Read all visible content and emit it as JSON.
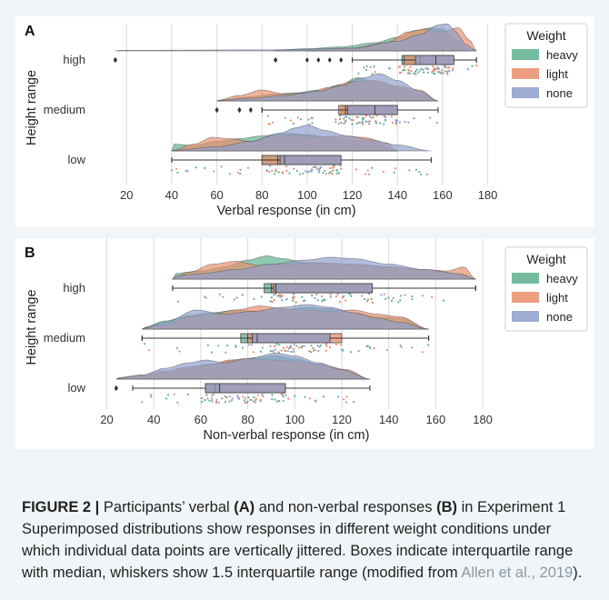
{
  "colors": {
    "heavy": "#5db08e",
    "light": "#e98d6b",
    "none": "#8e9dcb",
    "panel_bg": "#ffffff",
    "figure_bg": "#f1f5f8"
  },
  "chart_data": [
    {
      "type": "raincloud",
      "panel_label": "A",
      "xlabel": "Verbal response (in cm)",
      "ylabel": "Height range",
      "xlim": [
        5,
        183
      ],
      "xticks": [
        20,
        40,
        60,
        80,
        100,
        120,
        140,
        160,
        180
      ],
      "grid": true,
      "legend_position": "outside-right",
      "legend_title": "Weight",
      "legend": [
        "heavy",
        "light",
        "none"
      ],
      "categories": [
        "high",
        "medium",
        "low"
      ],
      "groups": [
        {
          "category": "high",
          "series": [
            {
              "name": "heavy",
              "q1": 142,
              "median": 150,
              "q3": 163,
              "whisker_low": 120,
              "whisker_high": 175,
              "outliers": [
                15,
                86,
                100,
                105,
                110,
                115
              ],
              "density_x": [
                85,
                100,
                115,
                130,
                140,
                148,
                155,
                160,
                165,
                172
              ],
              "density_y": [
                0.03,
                0.08,
                0.15,
                0.3,
                0.5,
                0.75,
                0.85,
                0.8,
                0.45,
                0.05
              ]
            },
            {
              "name": "light",
              "q1": 143,
              "median": 150,
              "q3": 165,
              "whisker_low": 120,
              "whisker_high": 175,
              "outliers": [
                15,
                86
              ],
              "density_x": [
                100,
                120,
                135,
                145,
                152,
                160,
                167,
                172,
                175
              ],
              "density_y": [
                0.03,
                0.1,
                0.3,
                0.7,
                0.8,
                0.7,
                0.85,
                0.4,
                0.0
              ]
            },
            {
              "name": "none",
              "q1": 148,
              "median": 157,
              "q3": 165,
              "whisker_low": 120,
              "whisker_high": 175,
              "outliers": [
                15,
                86
              ],
              "density_x": [
                15,
                86,
                120,
                140,
                150,
                158,
                162,
                166,
                170,
                175
              ],
              "density_y": [
                0.02,
                0.04,
                0.1,
                0.35,
                0.6,
                0.95,
                1.0,
                0.7,
                0.25,
                0.0
              ]
            }
          ]
        },
        {
          "category": "medium",
          "series": [
            {
              "name": "heavy",
              "q1": 115,
              "median": 118,
              "q3": 138,
              "whisker_low": 80,
              "whisker_high": 158,
              "outliers": [
                60,
                70,
                75
              ],
              "density_x": [
                60,
                75,
                85,
                95,
                105,
                115,
                122,
                130,
                140,
                150,
                158
              ],
              "density_y": [
                0.02,
                0.15,
                0.25,
                0.3,
                0.4,
                0.6,
                0.85,
                0.7,
                0.5,
                0.25,
                0.0
              ]
            },
            {
              "name": "light",
              "q1": 114,
              "median": 117,
              "q3": 140,
              "whisker_low": 80,
              "whisker_high": 158,
              "outliers": [
                60,
                70
              ],
              "density_x": [
                60,
                70,
                80,
                90,
                100,
                110,
                120,
                130,
                140,
                150,
                158
              ],
              "density_y": [
                0.02,
                0.2,
                0.4,
                0.25,
                0.3,
                0.5,
                0.7,
                0.75,
                0.55,
                0.4,
                0.0
              ]
            },
            {
              "name": "none",
              "q1": 118,
              "median": 130,
              "q3": 140,
              "whisker_low": 80,
              "whisker_high": 158,
              "outliers": [
                60,
                70,
                75
              ],
              "density_x": [
                60,
                75,
                90,
                105,
                115,
                125,
                132,
                140,
                150,
                158
              ],
              "density_y": [
                0.02,
                0.1,
                0.2,
                0.35,
                0.55,
                0.85,
                1.0,
                0.75,
                0.35,
                0.0
              ]
            }
          ]
        },
        {
          "category": "low",
          "series": [
            {
              "name": "heavy",
              "q1": 80,
              "median": 90,
              "q3": 115,
              "whisker_low": 40,
              "whisker_high": 155,
              "outliers": [],
              "density_x": [
                40,
                50,
                60,
                70,
                80,
                90,
                100,
                110,
                120,
                130,
                140
              ],
              "density_y": [
                0.25,
                0.2,
                0.35,
                0.45,
                0.55,
                0.65,
                0.6,
                0.5,
                0.4,
                0.3,
                0.0
              ]
            },
            {
              "name": "light",
              "q1": 80,
              "median": 87,
              "q3": 115,
              "whisker_low": 40,
              "whisker_high": 155,
              "outliers": [],
              "density_x": [
                40,
                50,
                58,
                65,
                75,
                85,
                95,
                105,
                115,
                125,
                135,
                140
              ],
              "density_y": [
                0.02,
                0.25,
                0.5,
                0.45,
                0.35,
                0.55,
                0.6,
                0.5,
                0.55,
                0.5,
                0.3,
                0.0
              ]
            },
            {
              "name": "none",
              "q1": 88,
              "median": 90,
              "q3": 115,
              "whisker_low": 40,
              "whisker_high": 155,
              "outliers": [],
              "density_x": [
                40,
                60,
                75,
                88,
                95,
                100,
                108,
                118,
                128,
                140,
                155
              ],
              "density_y": [
                0.02,
                0.15,
                0.35,
                0.65,
                0.85,
                0.95,
                0.75,
                0.55,
                0.4,
                0.22,
                0.0
              ]
            }
          ]
        }
      ]
    },
    {
      "type": "raincloud",
      "panel_label": "B",
      "xlabel": "Non-verbal response (in cm)",
      "ylabel": "Height range",
      "xlim": [
        14,
        185
      ],
      "xticks": [
        20,
        40,
        60,
        80,
        100,
        120,
        140,
        160,
        180
      ],
      "grid": true,
      "legend_position": "outside-right",
      "legend_title": "Weight",
      "legend": [
        "heavy",
        "light",
        "none"
      ],
      "categories": [
        "high",
        "medium",
        "low"
      ],
      "groups": [
        {
          "category": "high",
          "series": [
            {
              "name": "heavy",
              "q1": 87,
              "median": 90,
              "q3": 133,
              "whisker_low": 48,
              "whisker_high": 177,
              "outliers": [],
              "density_x": [
                48,
                60,
                70,
                80,
                88,
                95,
                105,
                118,
                130,
                145,
                160,
                172,
                177
              ],
              "density_y": [
                0.2,
                0.3,
                0.45,
                0.7,
                0.85,
                0.75,
                0.6,
                0.55,
                0.5,
                0.4,
                0.3,
                0.15,
                0.0
              ]
            },
            {
              "name": "light",
              "q1": 90,
              "median": 92,
              "q3": 133,
              "whisker_low": 48,
              "whisker_high": 177,
              "outliers": [],
              "density_x": [
                48,
                55,
                65,
                75,
                85,
                95,
                110,
                125,
                140,
                155,
                165,
                172,
                177
              ],
              "density_y": [
                0.05,
                0.25,
                0.55,
                0.65,
                0.5,
                0.55,
                0.6,
                0.55,
                0.45,
                0.35,
                0.3,
                0.45,
                0.0
              ]
            },
            {
              "name": "none",
              "q1": 91,
              "median": 92,
              "q3": 133,
              "whisker_low": 48,
              "whisker_high": 177,
              "outliers": [],
              "density_x": [
                48,
                60,
                75,
                90,
                105,
                115,
                125,
                140,
                155,
                170,
                177
              ],
              "density_y": [
                0.1,
                0.2,
                0.35,
                0.55,
                0.7,
                0.8,
                0.75,
                0.55,
                0.35,
                0.2,
                0.0
              ]
            }
          ]
        },
        {
          "category": "medium",
          "series": [
            {
              "name": "heavy",
              "q1": 77,
              "median": 80,
              "q3": 115,
              "whisker_low": 35,
              "whisker_high": 157,
              "outliers": [],
              "density_x": [
                35,
                45,
                55,
                65,
                75,
                85,
                95,
                105,
                115,
                125,
                135,
                145,
                157
              ],
              "density_y": [
                0.05,
                0.3,
                0.5,
                0.6,
                0.7,
                0.65,
                0.7,
                0.8,
                0.75,
                0.6,
                0.45,
                0.4,
                0.0
              ]
            },
            {
              "name": "light",
              "q1": 80,
              "median": 82,
              "q3": 120,
              "whisker_low": 35,
              "whisker_high": 157,
              "outliers": [],
              "density_x": [
                35,
                45,
                55,
                65,
                75,
                85,
                95,
                105,
                115,
                125,
                135,
                145,
                157
              ],
              "density_y": [
                0.05,
                0.15,
                0.45,
                0.55,
                0.7,
                0.85,
                0.75,
                0.7,
                0.65,
                0.7,
                0.55,
                0.45,
                0.0
              ]
            },
            {
              "name": "none",
              "q1": 82,
              "median": 84,
              "q3": 115,
              "whisker_low": 35,
              "whisker_high": 157,
              "outliers": [],
              "density_x": [
                35,
                45,
                58,
                70,
                82,
                95,
                105,
                115,
                125,
                135,
                145,
                157
              ],
              "density_y": [
                0.02,
                0.25,
                0.7,
                0.55,
                0.65,
                0.8,
                0.9,
                0.8,
                0.6,
                0.4,
                0.25,
                0.0
              ]
            }
          ]
        },
        {
          "category": "low",
          "series": [
            {
              "name": "heavy",
              "q1": 62,
              "median": 68,
              "q3": 96,
              "whisker_low": 31,
              "whisker_high": 132,
              "outliers": [
                24
              ],
              "density_x": [
                24,
                35,
                45,
                55,
                65,
                75,
                85,
                92,
                100,
                110,
                120,
                132
              ],
              "density_y": [
                0.02,
                0.1,
                0.25,
                0.4,
                0.55,
                0.7,
                0.8,
                0.85,
                0.75,
                0.55,
                0.35,
                0.0
              ]
            },
            {
              "name": "light",
              "q1": 62,
              "median": 66,
              "q3": 96,
              "whisker_low": 31,
              "whisker_high": 132,
              "outliers": [
                24
              ],
              "density_x": [
                24,
                35,
                45,
                55,
                65,
                72,
                80,
                90,
                100,
                112,
                122,
                132
              ],
              "density_y": [
                0.05,
                0.15,
                0.3,
                0.45,
                0.55,
                0.7,
                0.75,
                0.7,
                0.65,
                0.5,
                0.35,
                0.0
              ]
            },
            {
              "name": "none",
              "q1": 62,
              "median": 68,
              "q3": 96,
              "whisker_low": 31,
              "whisker_high": 132,
              "outliers": [
                24
              ],
              "density_x": [
                24,
                35,
                45,
                55,
                62,
                70,
                80,
                92,
                100,
                110,
                120,
                132
              ],
              "density_y": [
                0.02,
                0.15,
                0.4,
                0.6,
                0.7,
                0.6,
                0.75,
                0.95,
                0.85,
                0.6,
                0.35,
                0.0
              ]
            }
          ]
        }
      ]
    }
  ],
  "caption": {
    "label": "FIGURE 2 |",
    "t1": " Participants’ verbal ",
    "b1": "(A)",
    "t2": " and non-verbal responses ",
    "b2": "(B)",
    "t3": " in Experiment 1 Superimposed distributions show responses in different weight conditions under which individual data points are vertically jittered. Boxes indicate interquartile range with median, whiskers show 1.5 interquartile range (modified from ",
    "link": "Allen et al., 2019",
    "t4": ")."
  }
}
